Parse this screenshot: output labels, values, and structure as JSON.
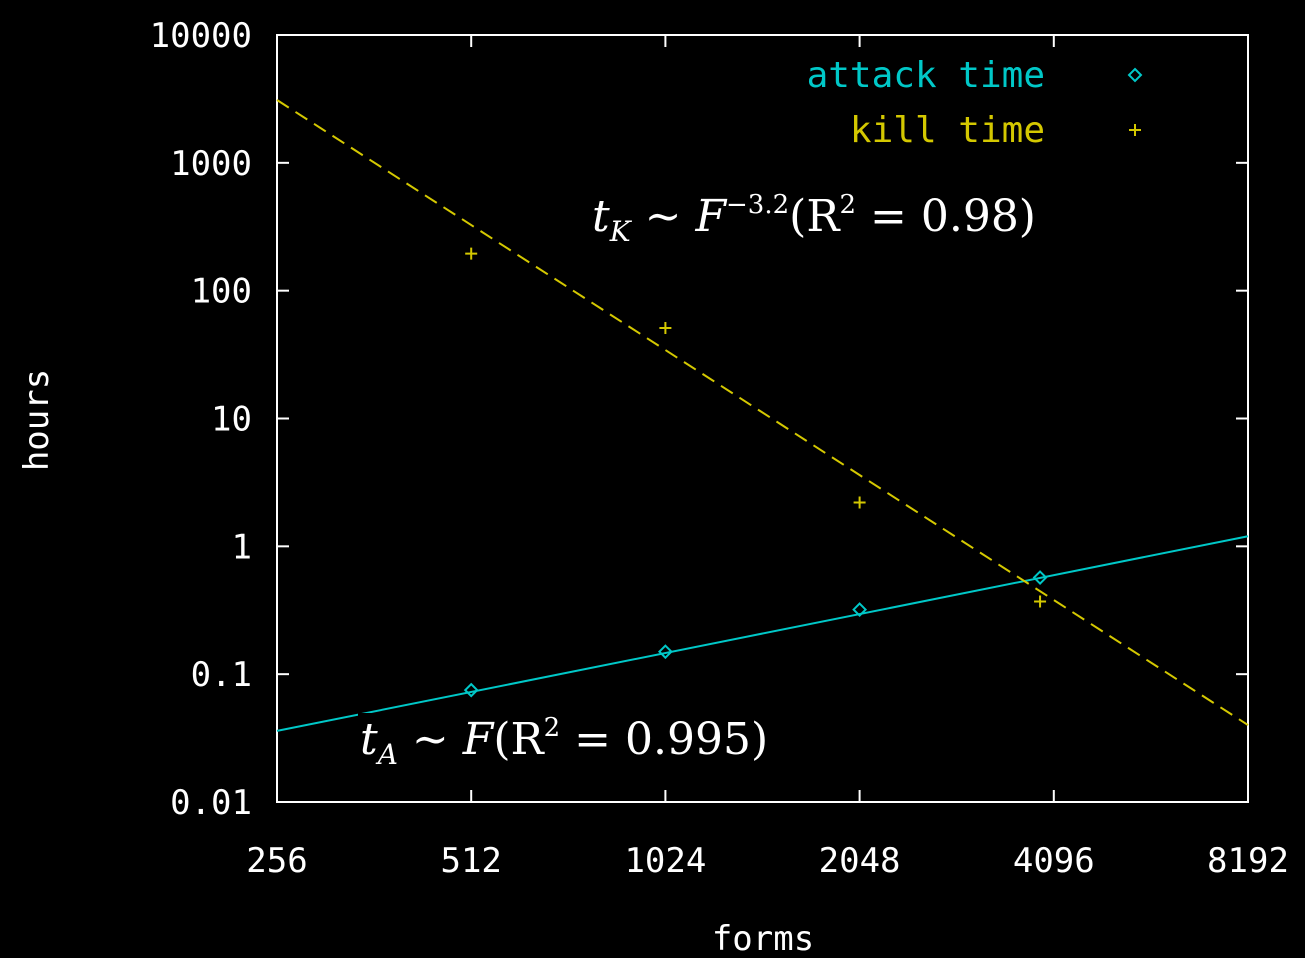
{
  "chart_data": {
    "type": "scatter",
    "title": "",
    "xlabel": "forms",
    "ylabel": "hours",
    "x_scale": "log2",
    "y_scale": "log10",
    "xlim": [
      256,
      8192
    ],
    "ylim": [
      0.01,
      10000
    ],
    "x_ticks": [
      "256",
      "512",
      "1024",
      "2048",
      "4096",
      "8192"
    ],
    "y_ticks": [
      "10000",
      "1000",
      "100",
      "10",
      "1",
      "0.1",
      "0.01"
    ],
    "legend_position": "top-right",
    "grid": false,
    "series": [
      {
        "name": "attack time",
        "color": "#00c8c8",
        "marker": "diamond",
        "points": [
          [
            512,
            0.075
          ],
          [
            1024,
            0.15
          ],
          [
            2048,
            0.32
          ],
          [
            3900,
            0.57
          ]
        ],
        "fit": {
          "style": "solid",
          "x": [
            256,
            8192
          ],
          "y": [
            0.036,
            1.2
          ]
        }
      },
      {
        "name": "kill time",
        "color": "#d4c800",
        "marker": "plus",
        "points": [
          [
            512,
            195
          ],
          [
            1024,
            51
          ],
          [
            2048,
            2.2
          ],
          [
            3900,
            0.37
          ]
        ],
        "fit": {
          "style": "dashed",
          "x": [
            256,
            8192
          ],
          "y": [
            3100,
            0.04
          ]
        }
      }
    ],
    "annotations": [
      {
        "id": "kill-fit",
        "t": "t",
        "sub": "K",
        "op": "∼",
        "base": "F",
        "exp": "−3.2",
        "rest": "(R",
        "r2exp": "2",
        "tail": " = 0.98)"
      },
      {
        "id": "attack-fit",
        "t": "t",
        "sub": "A",
        "op": "∼",
        "base": "F",
        "rest": "(R",
        "r2exp": "2",
        "tail": " = 0.995)"
      }
    ]
  }
}
